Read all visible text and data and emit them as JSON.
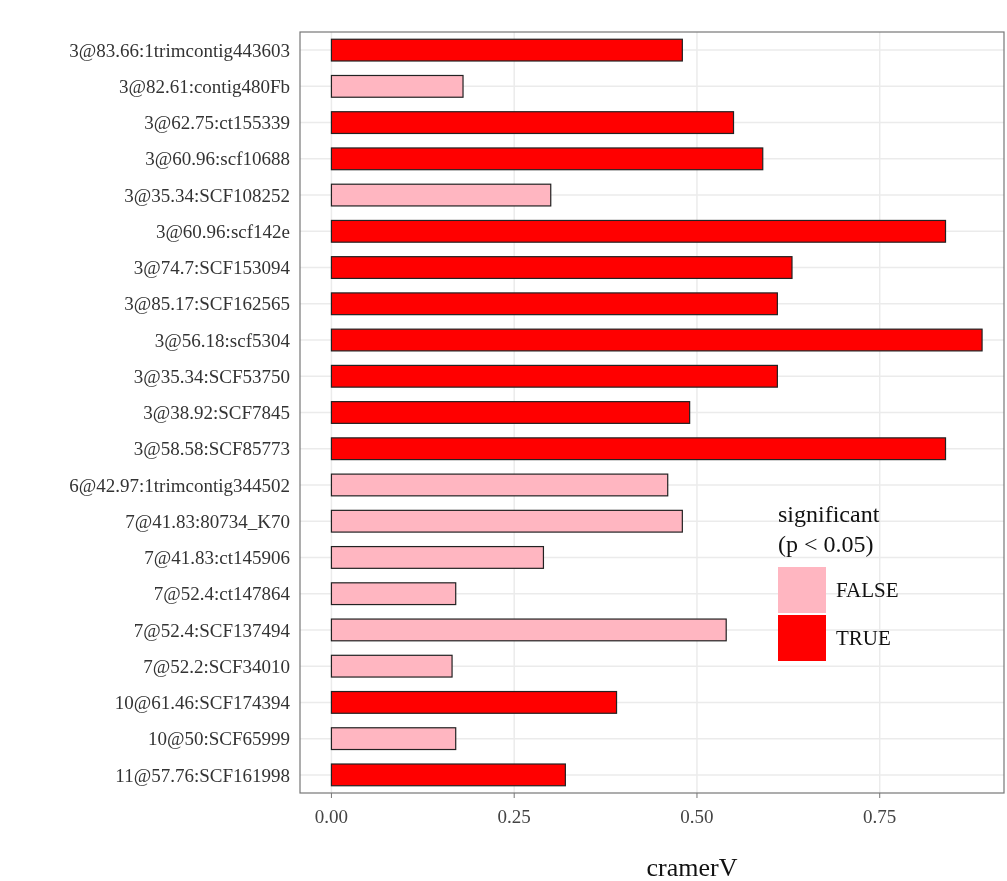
{
  "chart_data": {
    "type": "bar",
    "orientation": "horizontal",
    "xlabel": "cramerV",
    "legend_title": "significant\n(p < 0.05)",
    "legend": "right",
    "grid": true,
    "categories": [
      "3@83.66:1trimcontig443603",
      "3@82.61:contig480Fb",
      "3@62.75:ct155339",
      "3@60.96:scf10688",
      "3@35.34:SCF108252",
      "3@60.96:scf142e",
      "3@74.7:SCF153094",
      "3@85.17:SCF162565",
      "3@56.18:scf5304",
      "3@35.34:SCF53750",
      "3@38.92:SCF7845",
      "3@58.58:SCF85773",
      "6@42.97:1trimcontig344502",
      "7@41.83:80734_K70",
      "7@41.83:ct145906",
      "7@52.4:ct147864",
      "7@52.4:SCF137494",
      "7@52.2:SCF34010",
      "10@61.46:SCF174394",
      "10@50:SCF65999",
      "11@57.76:SCF161998"
    ],
    "series": [
      {
        "name": "FALSE",
        "color": "#ffb6c1",
        "values": [
          null,
          0.18,
          null,
          null,
          0.3,
          null,
          null,
          null,
          null,
          null,
          null,
          null,
          0.46,
          0.48,
          0.29,
          0.17,
          0.54,
          0.165,
          null,
          0.17,
          null
        ]
      },
      {
        "name": "TRUE",
        "color": "#ff0000",
        "values": [
          0.48,
          null,
          0.55,
          0.59,
          null,
          0.84,
          0.63,
          0.61,
          0.89,
          0.61,
          0.49,
          0.84,
          null,
          null,
          null,
          null,
          null,
          null,
          0.39,
          null,
          0.32
        ]
      }
    ],
    "xlim": [
      -0.043,
      0.92
    ],
    "xticks": [
      {
        "value": 0,
        "label": "0.00"
      },
      {
        "value": 0.25,
        "label": "0.25"
      },
      {
        "value": 0.5,
        "label": "0.50"
      },
      {
        "value": 0.75,
        "label": "0.75"
      }
    ]
  }
}
